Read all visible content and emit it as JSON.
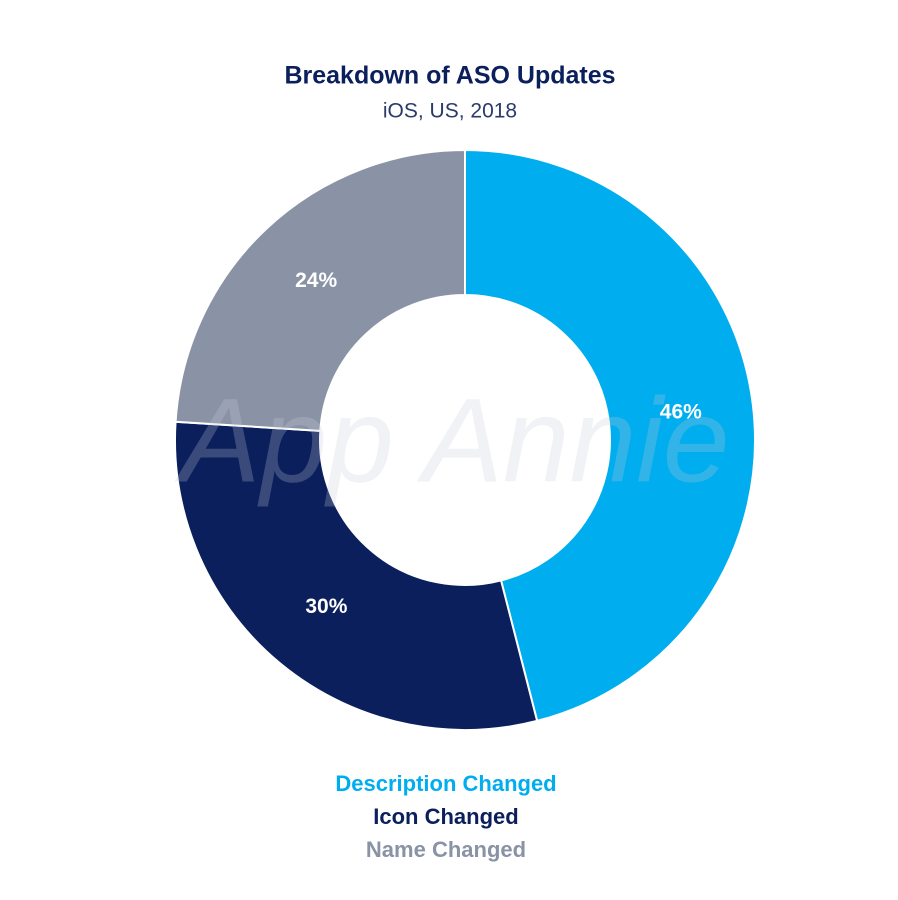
{
  "chart_data": {
    "type": "pie",
    "title": "Breakdown of ASO Updates",
    "subtitle": "iOS, US, 2018",
    "watermark": "App Annie",
    "categories": [
      "Description Changed",
      "Icon Changed",
      "Name Changed"
    ],
    "values": [
      46,
      30,
      24
    ],
    "value_labels": [
      "46%",
      "30%",
      "24%"
    ],
    "colors": [
      "#00adef",
      "#0b1f5c",
      "#8a93a6"
    ],
    "donut": true
  }
}
